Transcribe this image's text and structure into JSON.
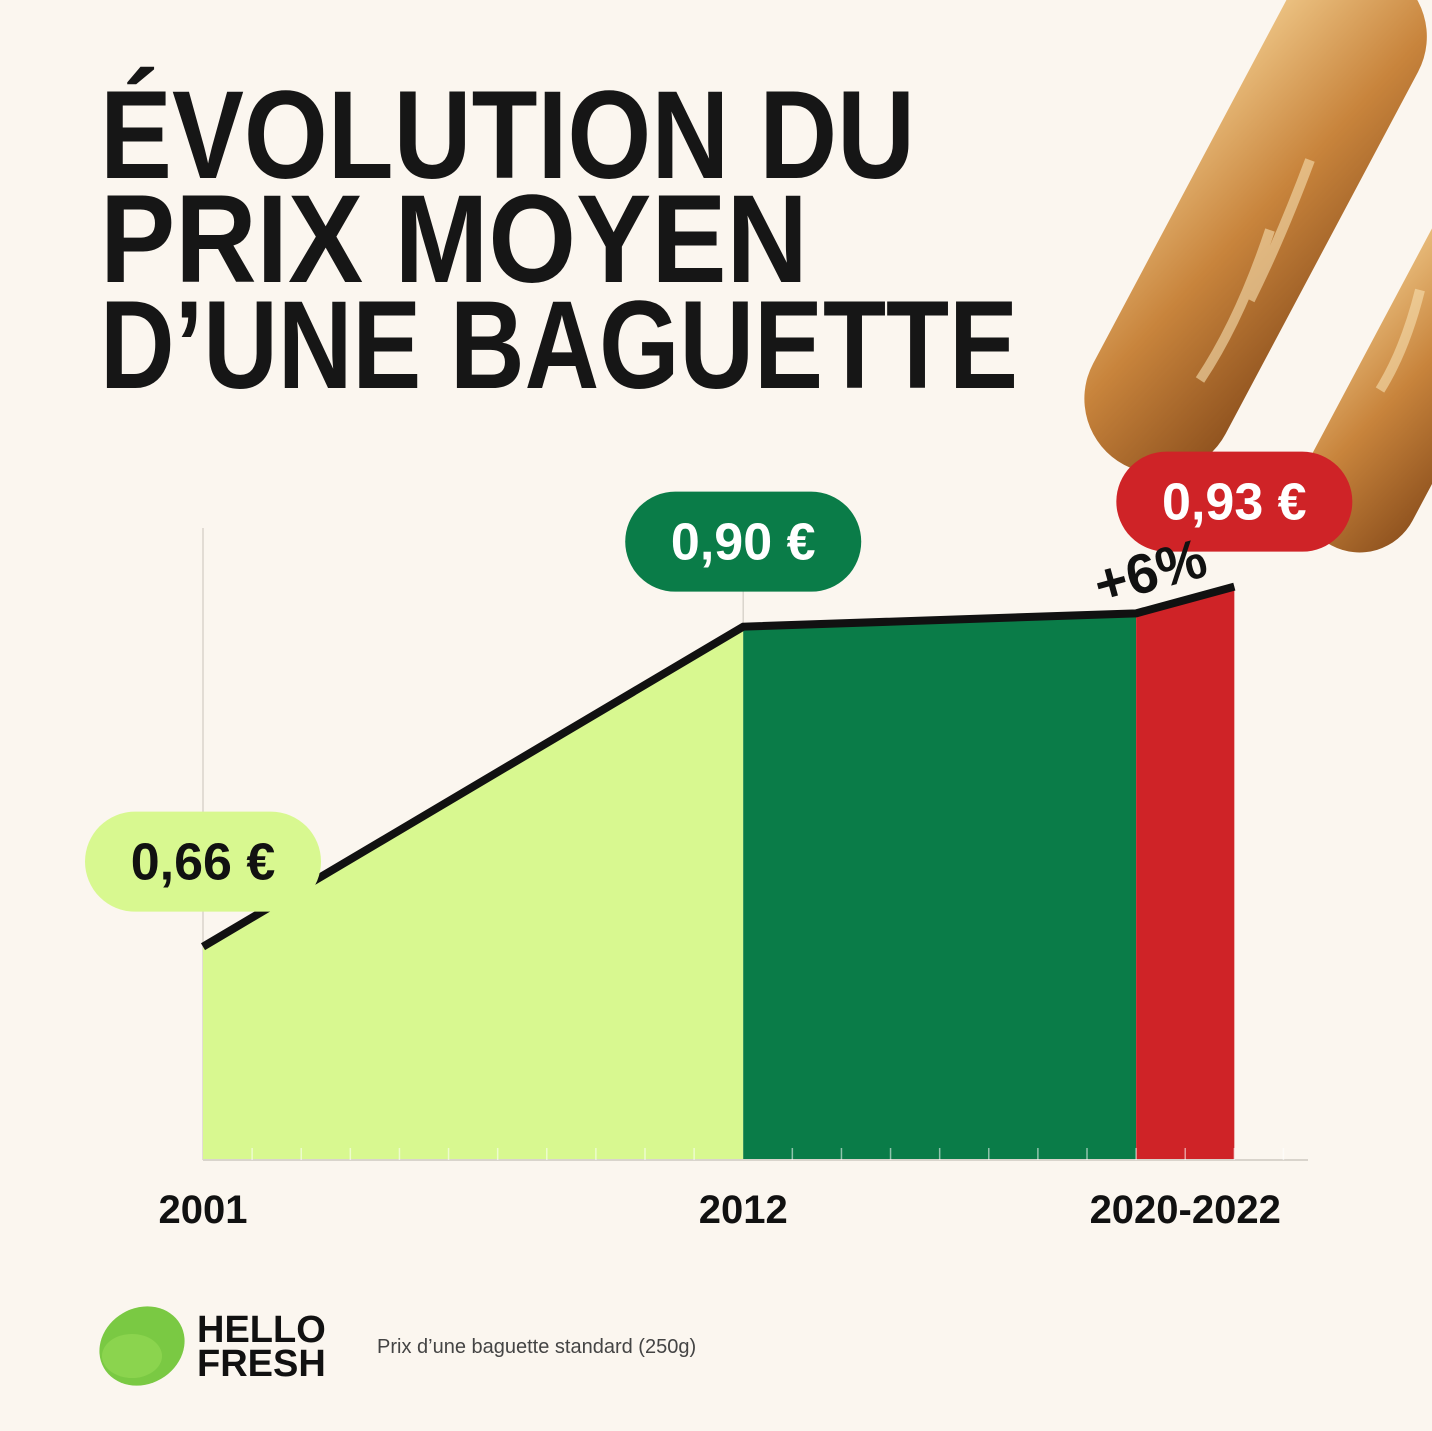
{
  "chart_data": {
    "type": "area",
    "title": [
      "ÉVOLUTION DU",
      "PRIX MOYEN",
      "D’UNE BAGUETTE"
    ],
    "x": [
      2001,
      2012,
      2020,
      2022
    ],
    "values": [
      0.66,
      0.9,
      0.91,
      0.93
    ],
    "value_labels": [
      "0,66 €",
      "0,90 €",
      null,
      "0,93 €"
    ],
    "area_colors": [
      "#d8f890",
      "#0a7c48",
      "#cf2327"
    ],
    "line_color": "#111111",
    "xlim": [
      2001,
      2023.5
    ],
    "ylim": [
      0.5,
      0.95
    ],
    "xticks": [
      2001,
      2012,
      {
        "value": 2021,
        "label": "2020-2022"
      }
    ],
    "xminorticks": [
      2002,
      2003,
      2004,
      2005,
      2006,
      2007,
      2008,
      2009,
      2010,
      2011,
      2013,
      2014,
      2015,
      2016,
      2017,
      2018,
      2019,
      2020,
      2021,
      2022,
      2023
    ],
    "annotation": "+6%",
    "note": "Prix d’une baguette standard (250g)"
  },
  "logo": {
    "lines": [
      "HELLO",
      "FRESH"
    ]
  }
}
